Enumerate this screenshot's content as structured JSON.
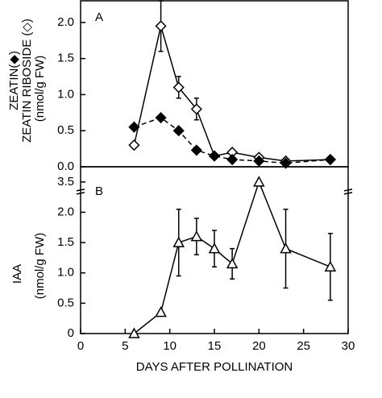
{
  "chart_data": [
    {
      "type": "line",
      "panel_label": "A",
      "y_label_lines": [
        "ZEATIN(◆)",
        "ZEATIN RIBOSIDE (◇)",
        "(nmol/g FW)"
      ],
      "xlim": [
        0,
        30
      ],
      "ylim": [
        0,
        2.3
      ],
      "yticks": [
        {
          "value": 0,
          "label": "0.0"
        },
        0.5,
        {
          "value": 1,
          "label": "1.0"
        },
        1.5,
        {
          "value": 2,
          "label": "2.0"
        }
      ],
      "series": [
        {
          "name": "ZEATIN RIBOSIDE",
          "marker": "open-diamond",
          "dashed": false,
          "color": "#000000",
          "x": [
            6,
            9,
            11,
            13,
            15,
            17,
            20,
            23,
            28
          ],
          "values": [
            0.3,
            1.95,
            1.1,
            0.8,
            0.15,
            0.2,
            0.13,
            0.08,
            0.1
          ],
          "errors": [
            null,
            0.35,
            0.15,
            0.15,
            null,
            null,
            null,
            null,
            null
          ]
        },
        {
          "name": "ZEATIN",
          "marker": "filled-diamond",
          "dashed": true,
          "color": "#000000",
          "x": [
            6,
            9,
            11,
            13,
            15,
            17,
            20,
            23,
            28
          ],
          "values": [
            0.55,
            0.68,
            0.5,
            0.23,
            0.15,
            0.1,
            0.08,
            0.05,
            0.1
          ],
          "errors": [
            null,
            null,
            null,
            null,
            null,
            null,
            null,
            null,
            null
          ]
        }
      ]
    },
    {
      "type": "line",
      "panel_label": "B",
      "y_label_lines": [
        "IAA",
        "(nmol/g FW)"
      ],
      "x_label": "DAYS AFTER POLLINATION",
      "xlim": [
        0,
        30
      ],
      "xticks": [
        0,
        5,
        10,
        15,
        20,
        25,
        30
      ],
      "ylim": [
        0,
        3.75
      ],
      "y_break": [
        2.3,
        3.3
      ],
      "yticks": [
        0,
        0.5,
        {
          "value": 1,
          "label": "1.0"
        },
        1.5,
        {
          "value": 2,
          "label": "2.0"
        },
        3.5
      ],
      "series": [
        {
          "name": "IAA",
          "marker": "open-triangle",
          "dashed": false,
          "color": "#000000",
          "x": [
            6,
            9,
            11,
            13,
            15,
            17,
            20,
            23,
            28
          ],
          "values": [
            0,
            0.35,
            1.5,
            1.6,
            1.4,
            1.15,
            3.5,
            1.4,
            1.1
          ],
          "errors": [
            null,
            null,
            0.55,
            0.3,
            0.3,
            0.25,
            null,
            0.65,
            0.55
          ]
        }
      ]
    }
  ]
}
